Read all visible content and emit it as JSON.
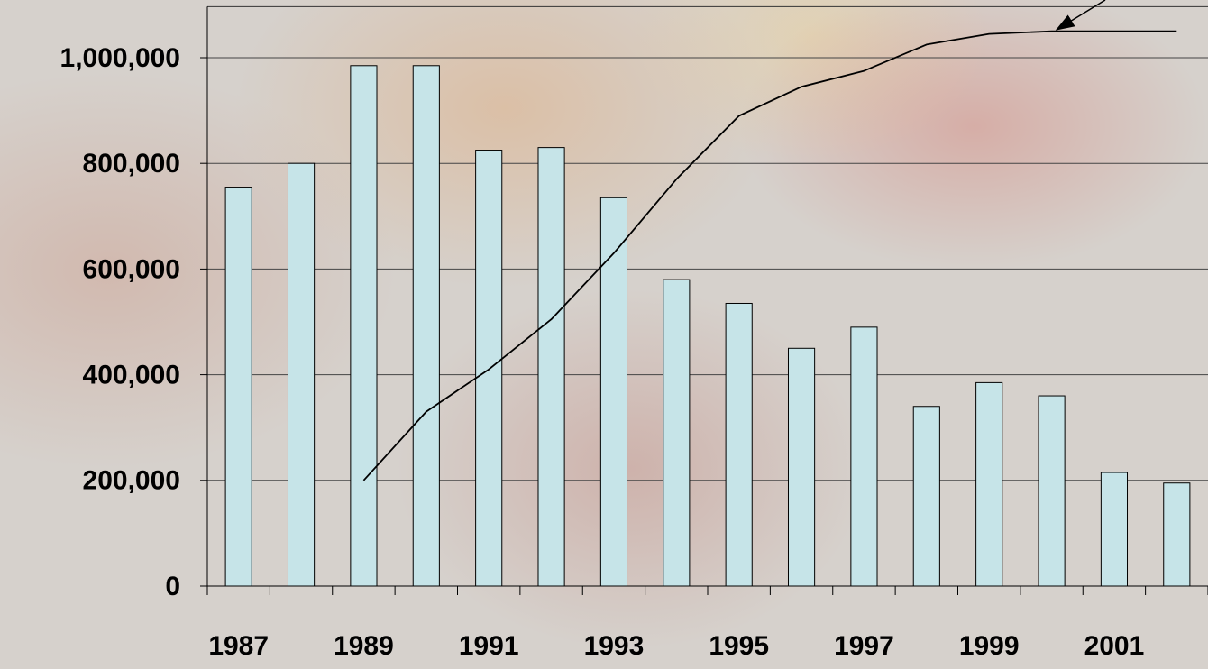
{
  "chart_data": {
    "type": "bar",
    "categories": [
      "1987",
      null,
      "1989",
      null,
      "1991",
      null,
      "1993",
      null,
      "1995",
      null,
      "1997",
      null,
      "1999",
      null,
      "2001",
      null
    ],
    "series": [
      {
        "type": "bar",
        "color": "#c6e4e8",
        "values": [
          755000,
          800000,
          985000,
          985000,
          825000,
          830000,
          735000,
          580000,
          535000,
          450000,
          490000,
          340000,
          385000,
          360000,
          215000,
          195000
        ]
      },
      {
        "type": "line",
        "color": "#000000",
        "values": [
          null,
          null,
          200000,
          330000,
          410000,
          505000,
          630000,
          770000,
          890000,
          945000,
          975000,
          1025000,
          1045000,
          1050000,
          1050000,
          1050000
        ]
      }
    ],
    "ylim": [
      0,
      1100000
    ],
    "yticks": [
      0,
      {
        "value": 200000,
        "label": "200,000"
      },
      {
        "value": 400000,
        "label": "400,000"
      },
      {
        "value": 600000,
        "label": "600,000"
      },
      {
        "value": 800000,
        "label": "800,000"
      },
      {
        "value": 1000000,
        "label": "1,000,000"
      }
    ],
    "grid": true
  }
}
